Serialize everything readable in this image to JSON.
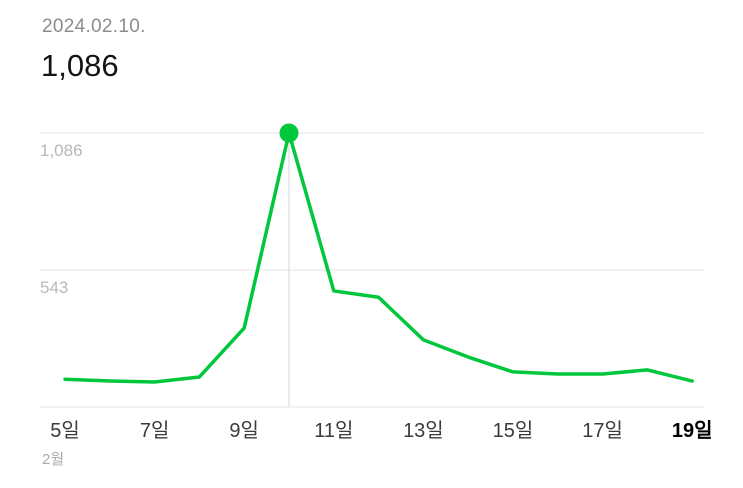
{
  "header": {
    "date": "2024.02.10.",
    "value": "1,086"
  },
  "chart_data": {
    "type": "line",
    "title": "",
    "xlabel": "",
    "ylabel": "",
    "x": [
      5,
      6,
      7,
      8,
      9,
      10,
      11,
      12,
      13,
      14,
      15,
      16,
      17,
      18,
      19
    ],
    "values": [
      110,
      103,
      99,
      119,
      313,
      1086,
      460,
      435,
      266,
      198,
      139,
      131,
      131,
      147,
      103
    ],
    "x_tick_days": [
      5,
      7,
      9,
      11,
      13,
      15,
      17,
      19
    ],
    "x_tick_labels": [
      "5일",
      "7일",
      "9일",
      "11일",
      "13일",
      "15일",
      "17일",
      "19일"
    ],
    "selected_x_label": "19일",
    "y_ticks": [
      1086,
      543
    ],
    "y_tick_labels": [
      "1,086",
      "543"
    ],
    "ylim": [
      0,
      1160
    ],
    "grid": true,
    "legend": "none",
    "highlight_point": {
      "day": 10,
      "value": 1086
    },
    "month_label": "2월",
    "line_color": "#00c73c",
    "dot_color": "#00c73c",
    "grid_color": "#e4e4e4",
    "vline_color": "#d6d6d6"
  }
}
